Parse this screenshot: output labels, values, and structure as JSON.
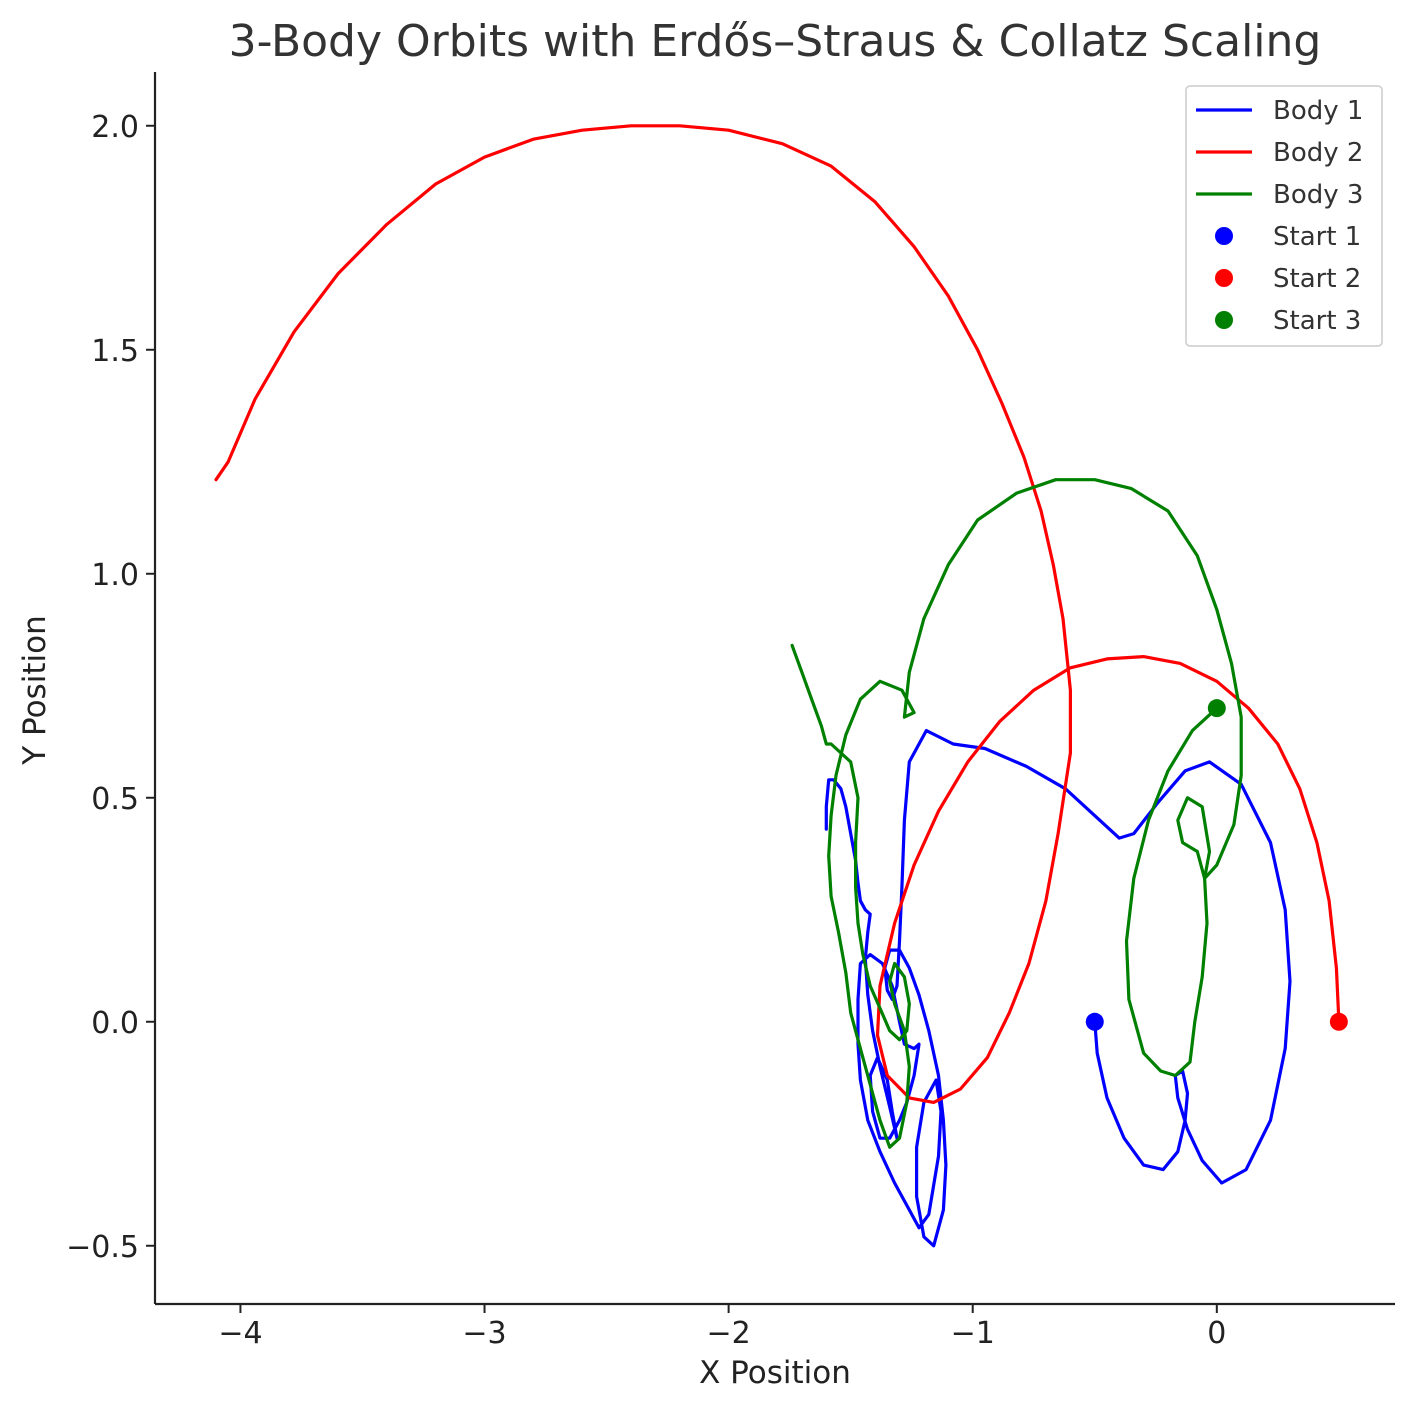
{
  "chart_data": {
    "type": "line",
    "title": "3-Body Orbits with Erdős–Straus & Collatz Scaling",
    "xlabel": "X Position",
    "ylabel": "Y Position",
    "xlim": [
      -4.35,
      0.73
    ],
    "ylim": [
      -0.63,
      2.12
    ],
    "xticks": [
      -4,
      -3,
      -2,
      -1,
      0
    ],
    "yticks": [
      -0.5,
      0.0,
      0.5,
      1.0,
      1.5,
      2.0
    ],
    "xtick_labels": [
      "−4",
      "−3",
      "−2",
      "−1",
      "0"
    ],
    "ytick_labels": [
      "−0.5",
      "0.0",
      "0.5",
      "1.0",
      "1.5",
      "2.0"
    ],
    "grid": false,
    "legend_position": "top-right",
    "series": [
      {
        "name": "Body 1",
        "color": "#0000ff",
        "points": [
          [
            -0.5,
            0.0
          ],
          [
            -0.49,
            -0.07
          ],
          [
            -0.45,
            -0.17
          ],
          [
            -0.38,
            -0.26
          ],
          [
            -0.3,
            -0.32
          ],
          [
            -0.22,
            -0.33
          ],
          [
            -0.16,
            -0.29
          ],
          [
            -0.13,
            -0.22
          ],
          [
            -0.12,
            -0.16
          ],
          [
            -0.14,
            -0.11
          ],
          [
            -0.17,
            -0.12
          ],
          [
            -0.16,
            -0.17
          ],
          [
            -0.12,
            -0.24
          ],
          [
            -0.06,
            -0.31
          ],
          [
            0.02,
            -0.36
          ],
          [
            0.12,
            -0.33
          ],
          [
            0.22,
            -0.22
          ],
          [
            0.28,
            -0.06
          ],
          [
            0.3,
            0.09
          ],
          [
            0.28,
            0.25
          ],
          [
            0.22,
            0.4
          ],
          [
            0.1,
            0.53
          ],
          [
            -0.03,
            0.58
          ],
          [
            -0.13,
            0.56
          ],
          [
            -0.24,
            0.49
          ],
          [
            -0.34,
            0.42
          ],
          [
            -0.4,
            0.41
          ],
          [
            -0.5,
            0.46
          ],
          [
            -0.62,
            0.52
          ],
          [
            -0.78,
            0.57
          ],
          [
            -0.95,
            0.61
          ],
          [
            -1.08,
            0.62
          ],
          [
            -1.19,
            0.65
          ],
          [
            -1.26,
            0.58
          ],
          [
            -1.28,
            0.45
          ],
          [
            -1.29,
            0.3
          ],
          [
            -1.3,
            0.18
          ],
          [
            -1.31,
            0.08
          ],
          [
            -1.33,
            0.05
          ],
          [
            -1.35,
            0.07
          ],
          [
            -1.36,
            0.12
          ],
          [
            -1.34,
            0.16
          ],
          [
            -1.3,
            0.16
          ],
          [
            -1.26,
            0.12
          ],
          [
            -1.22,
            0.06
          ],
          [
            -1.18,
            -0.02
          ],
          [
            -1.14,
            -0.12
          ],
          [
            -1.12,
            -0.22
          ],
          [
            -1.11,
            -0.32
          ],
          [
            -1.12,
            -0.42
          ],
          [
            -1.16,
            -0.5
          ],
          [
            -1.2,
            -0.48
          ],
          [
            -1.23,
            -0.39
          ],
          [
            -1.23,
            -0.28
          ],
          [
            -1.2,
            -0.18
          ],
          [
            -1.15,
            -0.13
          ],
          [
            -1.13,
            -0.2
          ],
          [
            -1.14,
            -0.3
          ],
          [
            -1.18,
            -0.43
          ],
          [
            -1.22,
            -0.46
          ],
          [
            -1.26,
            -0.42
          ],
          [
            -1.32,
            -0.36
          ],
          [
            -1.38,
            -0.29
          ],
          [
            -1.43,
            -0.22
          ],
          [
            -1.46,
            -0.13
          ],
          [
            -1.47,
            -0.05
          ],
          [
            -1.47,
            0.05
          ],
          [
            -1.46,
            0.13
          ],
          [
            -1.42,
            0.15
          ],
          [
            -1.37,
            0.13
          ],
          [
            -1.33,
            0.08
          ],
          [
            -1.3,
            0.0
          ],
          [
            -1.28,
            -0.05
          ],
          [
            -1.24,
            -0.06
          ],
          [
            -1.22,
            -0.05
          ],
          [
            -1.24,
            -0.12
          ],
          [
            -1.27,
            -0.18
          ],
          [
            -1.3,
            -0.22
          ],
          [
            -1.34,
            -0.26
          ],
          [
            -1.38,
            -0.26
          ],
          [
            -1.41,
            -0.2
          ],
          [
            -1.42,
            -0.12
          ],
          [
            -1.39,
            -0.08
          ],
          [
            -1.35,
            -0.13
          ],
          [
            -1.33,
            -0.2
          ],
          [
            -1.31,
            -0.26
          ],
          [
            -1.34,
            -0.19
          ],
          [
            -1.38,
            -0.1
          ],
          [
            -1.41,
            -0.02
          ],
          [
            -1.43,
            0.06
          ],
          [
            -1.44,
            0.14
          ],
          [
            -1.43,
            0.2
          ],
          [
            -1.42,
            0.24
          ],
          [
            -1.44,
            0.25
          ],
          [
            -1.46,
            0.27
          ],
          [
            -1.47,
            0.31
          ],
          [
            -1.48,
            0.36
          ],
          [
            -1.5,
            0.42
          ],
          [
            -1.52,
            0.48
          ],
          [
            -1.54,
            0.52
          ],
          [
            -1.57,
            0.54
          ],
          [
            -1.59,
            0.54
          ],
          [
            -1.6,
            0.48
          ],
          [
            -1.6,
            0.43
          ]
        ]
      },
      {
        "name": "Body 2",
        "color": "#ff0000",
        "points": [
          [
            0.5,
            0.0
          ],
          [
            0.49,
            0.12
          ],
          [
            0.46,
            0.27
          ],
          [
            0.41,
            0.4
          ],
          [
            0.34,
            0.52
          ],
          [
            0.25,
            0.62
          ],
          [
            0.13,
            0.7
          ],
          [
            0.0,
            0.76
          ],
          [
            -0.15,
            0.8
          ],
          [
            -0.3,
            0.815
          ],
          [
            -0.45,
            0.81
          ],
          [
            -0.6,
            0.79
          ],
          [
            -0.75,
            0.74
          ],
          [
            -0.89,
            0.67
          ],
          [
            -1.02,
            0.58
          ],
          [
            -1.14,
            0.47
          ],
          [
            -1.24,
            0.35
          ],
          [
            -1.32,
            0.22
          ],
          [
            -1.38,
            0.08
          ],
          [
            -1.39,
            -0.03
          ],
          [
            -1.35,
            -0.12
          ],
          [
            -1.26,
            -0.17
          ],
          [
            -1.16,
            -0.18
          ],
          [
            -1.05,
            -0.15
          ],
          [
            -0.94,
            -0.08
          ],
          [
            -0.85,
            0.02
          ],
          [
            -0.77,
            0.13
          ],
          [
            -0.7,
            0.27
          ],
          [
            -0.65,
            0.42
          ],
          [
            -0.6,
            0.6
          ],
          [
            -0.6,
            0.74
          ],
          [
            -0.63,
            0.9
          ],
          [
            -0.67,
            1.02
          ],
          [
            -0.72,
            1.14
          ],
          [
            -0.79,
            1.26
          ],
          [
            -0.88,
            1.38
          ],
          [
            -0.98,
            1.5
          ],
          [
            -1.1,
            1.62
          ],
          [
            -1.24,
            1.73
          ],
          [
            -1.4,
            1.83
          ],
          [
            -1.58,
            1.91
          ],
          [
            -1.78,
            1.96
          ],
          [
            -2.0,
            1.99
          ],
          [
            -2.2,
            2.0
          ],
          [
            -2.4,
            2.0
          ],
          [
            -2.6,
            1.99
          ],
          [
            -2.8,
            1.97
          ],
          [
            -3.0,
            1.93
          ],
          [
            -3.2,
            1.87
          ],
          [
            -3.4,
            1.78
          ],
          [
            -3.6,
            1.67
          ],
          [
            -3.78,
            1.54
          ],
          [
            -3.94,
            1.39
          ],
          [
            -4.05,
            1.25
          ],
          [
            -4.1,
            1.21
          ]
        ]
      },
      {
        "name": "Body 3",
        "color": "#008000",
        "points": [
          [
            0.0,
            0.7
          ],
          [
            -0.1,
            0.65
          ],
          [
            -0.2,
            0.56
          ],
          [
            -0.28,
            0.45
          ],
          [
            -0.34,
            0.32
          ],
          [
            -0.37,
            0.18
          ],
          [
            -0.36,
            0.05
          ],
          [
            -0.3,
            -0.07
          ],
          [
            -0.23,
            -0.11
          ],
          [
            -0.17,
            -0.12
          ],
          [
            -0.11,
            -0.09
          ],
          [
            -0.09,
            0.0
          ],
          [
            -0.06,
            0.1
          ],
          [
            -0.04,
            0.22
          ],
          [
            -0.05,
            0.32
          ],
          [
            -0.08,
            0.38
          ],
          [
            -0.14,
            0.4
          ],
          [
            -0.16,
            0.45
          ],
          [
            -0.12,
            0.5
          ],
          [
            -0.06,
            0.48
          ],
          [
            -0.03,
            0.38
          ],
          [
            -0.05,
            0.32
          ],
          [
            0.0,
            0.35
          ],
          [
            0.07,
            0.44
          ],
          [
            0.1,
            0.55
          ],
          [
            0.1,
            0.68
          ],
          [
            0.06,
            0.8
          ],
          [
            0.0,
            0.92
          ],
          [
            -0.08,
            1.04
          ],
          [
            -0.2,
            1.14
          ],
          [
            -0.35,
            1.19
          ],
          [
            -0.5,
            1.21
          ],
          [
            -0.66,
            1.21
          ],
          [
            -0.82,
            1.18
          ],
          [
            -0.98,
            1.12
          ],
          [
            -1.1,
            1.02
          ],
          [
            -1.2,
            0.9
          ],
          [
            -1.26,
            0.78
          ],
          [
            -1.28,
            0.68
          ],
          [
            -1.24,
            0.69
          ],
          [
            -1.29,
            0.74
          ],
          [
            -1.38,
            0.76
          ],
          [
            -1.46,
            0.72
          ],
          [
            -1.52,
            0.64
          ],
          [
            -1.56,
            0.55
          ],
          [
            -1.58,
            0.46
          ],
          [
            -1.59,
            0.37
          ],
          [
            -1.58,
            0.28
          ],
          [
            -1.55,
            0.2
          ],
          [
            -1.52,
            0.11
          ],
          [
            -1.5,
            0.02
          ],
          [
            -1.46,
            -0.06
          ],
          [
            -1.42,
            -0.14
          ],
          [
            -1.38,
            -0.22
          ],
          [
            -1.34,
            -0.28
          ],
          [
            -1.3,
            -0.26
          ],
          [
            -1.27,
            -0.18
          ],
          [
            -1.26,
            -0.1
          ],
          [
            -1.28,
            -0.02
          ],
          [
            -1.32,
            0.04
          ],
          [
            -1.34,
            0.09
          ],
          [
            -1.32,
            0.13
          ],
          [
            -1.28,
            0.1
          ],
          [
            -1.26,
            0.04
          ],
          [
            -1.27,
            -0.02
          ],
          [
            -1.3,
            -0.04
          ],
          [
            -1.34,
            -0.02
          ],
          [
            -1.38,
            0.03
          ],
          [
            -1.42,
            0.08
          ],
          [
            -1.45,
            0.15
          ],
          [
            -1.47,
            0.22
          ],
          [
            -1.48,
            0.3
          ],
          [
            -1.48,
            0.4
          ],
          [
            -1.47,
            0.5
          ],
          [
            -1.5,
            0.58
          ],
          [
            -1.58,
            0.62
          ],
          [
            -1.6,
            0.62
          ],
          [
            -1.62,
            0.66
          ],
          [
            -1.66,
            0.72
          ],
          [
            -1.7,
            0.78
          ],
          [
            -1.74,
            0.84
          ]
        ]
      }
    ],
    "start_points": [
      {
        "name": "Start 1",
        "color": "#0000ff",
        "x": -0.5,
        "y": 0.0
      },
      {
        "name": "Start 2",
        "color": "#ff0000",
        "x": 0.5,
        "y": 0.0
      },
      {
        "name": "Start 3",
        "color": "#008000",
        "x": 0.0,
        "y": 0.7
      }
    ]
  }
}
